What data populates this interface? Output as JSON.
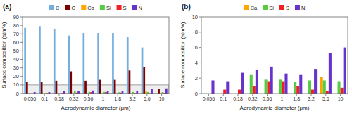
{
  "chart_data": [
    {
      "type": "bar",
      "title": "(a)",
      "xlabel": "Aerodynamic diameter (μm)",
      "ylabel": "Surface composition (atm%)",
      "categories": [
        "0.056",
        "0.1",
        "0.18",
        "0.32",
        "0.56",
        "1",
        "1.8",
        "3.2",
        "5.6",
        "10"
      ],
      "series": [
        {
          "name": "C",
          "color": "#74aedd",
          "values": [
            77,
            79,
            76,
            68,
            71,
            71,
            71,
            66,
            54,
            0
          ]
        },
        {
          "name": "O",
          "color": "#7B0000",
          "values": [
            14,
            14,
            15,
            26,
            15,
            16,
            16,
            27,
            31,
            5
          ]
        },
        {
          "name": "Ca",
          "color": "#FFA500",
          "values": [
            0,
            0,
            0,
            0,
            0,
            0,
            0,
            0,
            2.2,
            0
          ]
        },
        {
          "name": "Si",
          "color": "#55CC44",
          "values": [
            0,
            0,
            0,
            2.5,
            1.8,
            1.8,
            1.5,
            1.7,
            1.7,
            1.6
          ]
        },
        {
          "name": "S",
          "color": "#EE2222",
          "values": [
            0,
            0.5,
            0.5,
            1.0,
            1.6,
            1.6,
            1.0,
            0.5,
            0.35,
            0.75
          ]
        },
        {
          "name": "N",
          "color": "#6633CC",
          "values": [
            1.7,
            1.6,
            2.7,
            3.1,
            3.5,
            2.6,
            2.5,
            3.2,
            5.3,
            6.0
          ]
        }
      ],
      "ylim": [
        0,
        90
      ],
      "yticks": [
        0,
        10,
        20,
        30,
        40,
        50,
        60,
        70,
        80,
        90
      ],
      "legend": "top",
      "grid": false
    },
    {
      "type": "bar",
      "title": "(b)",
      "xlabel": "Aerodynamic diameter (μm)",
      "ylabel": "Surface composition (atm%)",
      "categories": [
        "0.056",
        "0.1",
        "0.18",
        "0.32",
        "0.56",
        "1",
        "1.8",
        "3.2",
        "5.6",
        "10"
      ],
      "series": [
        {
          "name": "Ca",
          "color": "#FFA500",
          "values": [
            0,
            0,
            0,
            0,
            0,
            0,
            0,
            0,
            2.2,
            0
          ]
        },
        {
          "name": "Si",
          "color": "#55CC44",
          "values": [
            0,
            0,
            0,
            2.5,
            1.8,
            1.8,
            1.5,
            1.7,
            1.7,
            1.6
          ]
        },
        {
          "name": "S",
          "color": "#EE2222",
          "values": [
            0,
            0.5,
            0.5,
            1.0,
            1.6,
            1.6,
            1.0,
            0.5,
            0.35,
            0.75
          ]
        },
        {
          "name": "N",
          "color": "#6633CC",
          "values": [
            1.7,
            1.6,
            2.7,
            3.1,
            3.5,
            2.6,
            2.5,
            3.2,
            5.3,
            6.0
          ]
        }
      ],
      "ylim": [
        0,
        10
      ],
      "yticks": [
        0,
        2,
        4,
        6,
        8,
        10
      ],
      "legend": "top",
      "grid": false
    }
  ]
}
